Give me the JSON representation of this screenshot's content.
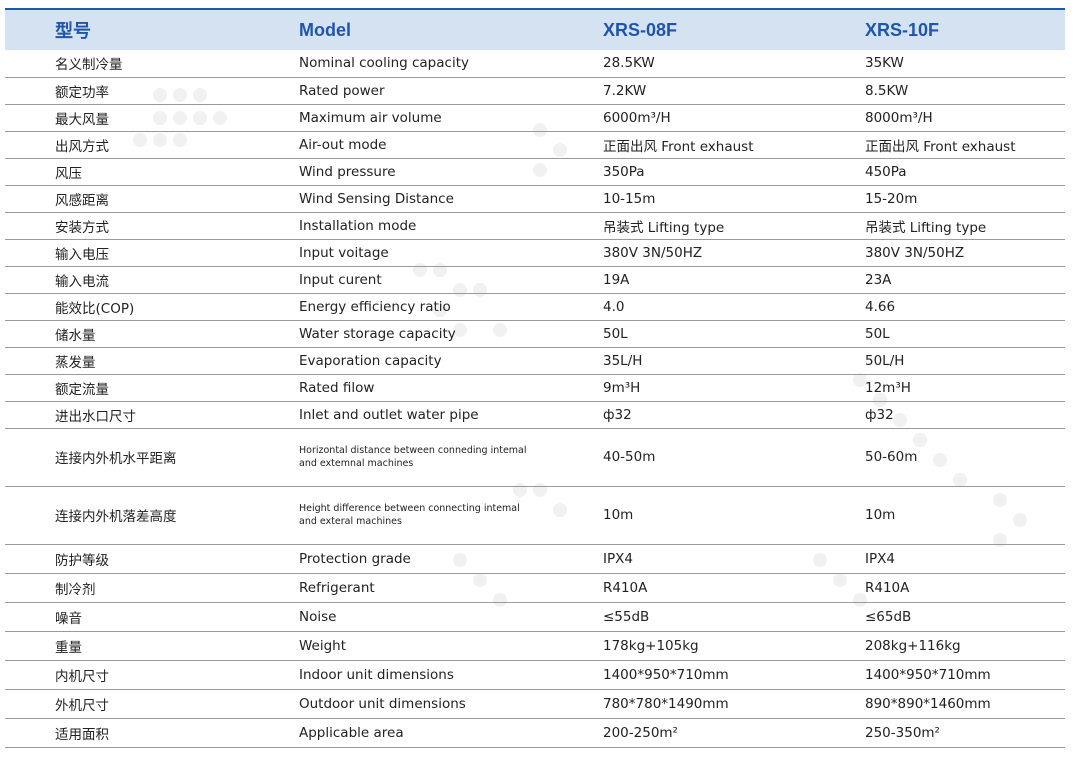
{
  "header": {
    "col_cn": "型号",
    "col_en": "Model",
    "col_m1": "XRS-08F",
    "col_m2": "XRS-10F"
  },
  "rows": [
    {
      "cn": "名义制冷量",
      "en": "Nominal cooling capacity",
      "v1": "28.5KW",
      "v2": "35KW"
    },
    {
      "cn": "额定功率",
      "en": "Rated power",
      "v1": "7.2KW",
      "v2": "8.5KW"
    },
    {
      "cn": "最大风量",
      "en": "Maximum air volume",
      "v1": "6000m³/H",
      "v2": "8000m³/H"
    },
    {
      "cn": "出风方式",
      "en": "Air-out mode",
      "v1": "正面出风 Front exhaust",
      "v2": "正面出风 Front exhaust"
    },
    {
      "cn": "风压",
      "en": "Wind  pressure",
      "v1": "350Pa",
      "v2": "450Pa"
    },
    {
      "cn": "风感距离",
      "en": "Wind Sensing Distance",
      "v1": "10-15m",
      "v2": "15-20m"
    },
    {
      "cn": "安装方式",
      "en": "Installation mode",
      "v1": "吊装式 Lifting type",
      "v2": "吊装式 Lifting type"
    },
    {
      "cn": "输入电压",
      "en": "Input voitage",
      "v1": "380V 3N/50HZ",
      "v2": "380V 3N/50HZ"
    },
    {
      "cn": "输入电流",
      "en": "Input curent",
      "v1": "19A",
      "v2": "23A"
    },
    {
      "cn": "能效比(COP)",
      "en": "Energy efficiency ratio",
      "v1": "4.0",
      "v2": "4.66"
    },
    {
      "cn": "储水量",
      "en": "Water storage capacity",
      "v1": "50L",
      "v2": "50L"
    },
    {
      "cn": "蒸发量",
      "en": "Evaporation capacity",
      "v1": "35L/H",
      "v2": "50L/H"
    },
    {
      "cn": "额定流量",
      "en": "Rated filow",
      "v1": "9m³H",
      "v2": "12m³H"
    },
    {
      "cn": "进出水口尺寸",
      "en": "Inlet and outlet water pipe",
      "v1": "ф32",
      "v2": "ф32"
    },
    {
      "cn": "连接内外机水平距离",
      "en": "Horizontal distance between conneding intemal and extemnal machines",
      "v1": "40-50m",
      "v2": "50-60m"
    },
    {
      "cn": "连接内外机落差高度",
      "en": "Height difference between connecting intemal and exteral machines",
      "v1": "10m",
      "v2": "10m"
    },
    {
      "cn": "防护等级",
      "en": "Protection grade",
      "v1": "IPX4",
      "v2": "IPX4"
    },
    {
      "cn": "制冷剂",
      "en": "Refrigerant",
      "v1": "R410A",
      "v2": "R410A"
    },
    {
      "cn": "噪音",
      "en": "Noise",
      "v1": "≤55dB",
      "v2": "≤65dB"
    },
    {
      "cn": "重量",
      "en": "Weight",
      "v1": "178kg+105kg",
      "v2": "208kg+116kg"
    },
    {
      "cn": "内机尺寸",
      "en": "Indoor unit dimensions",
      "v1": "1400*950*710mm",
      "v2": "1400*950*710mm"
    },
    {
      "cn": "外机尺寸",
      "en": "Outdoor unit dimensions",
      "v1": "780*780*1490mm",
      "v2": "890*890*1460mm"
    },
    {
      "cn": "适用面积",
      "en": "Applicable area",
      "v1": "200-250m²",
      "v2": "250-350m²"
    }
  ],
  "colors": {
    "header_bg": "#d4e2f1",
    "header_text": "#1f56ad",
    "rule": "#9a9a9a"
  }
}
